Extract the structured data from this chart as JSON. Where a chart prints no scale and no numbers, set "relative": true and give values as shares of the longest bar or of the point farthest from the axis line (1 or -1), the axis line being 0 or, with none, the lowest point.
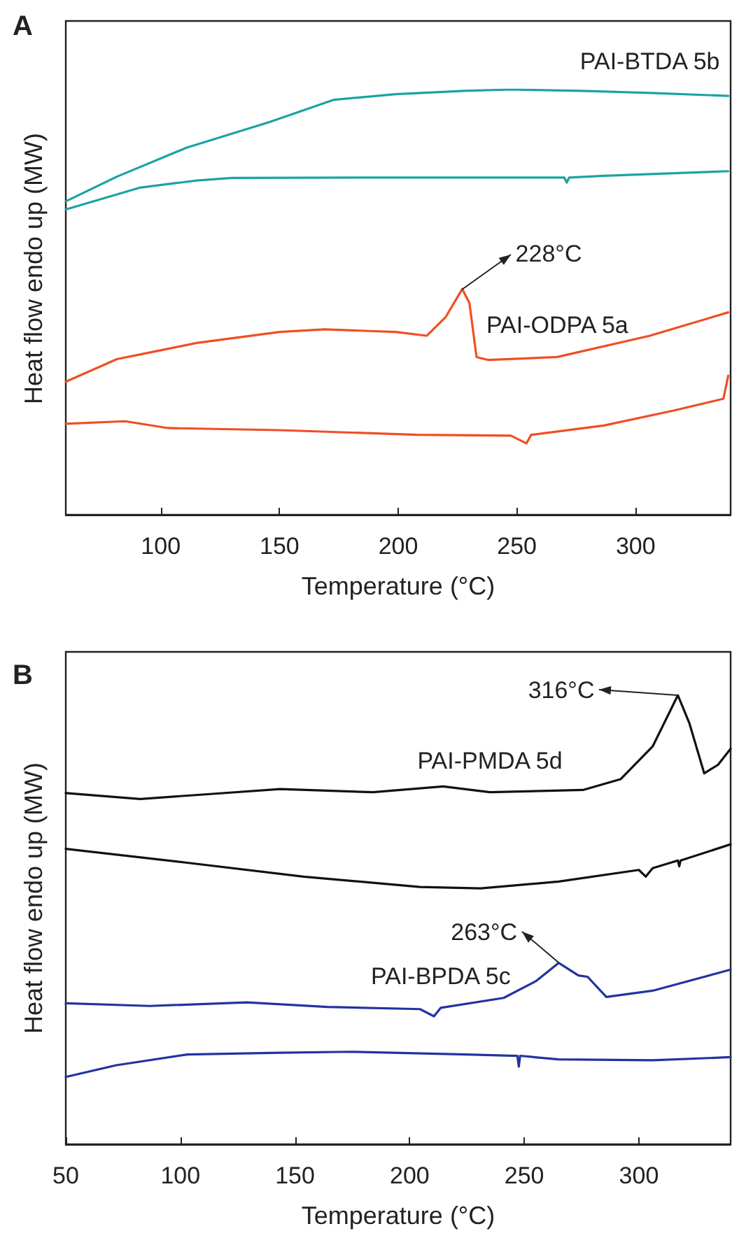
{
  "chart_data": [
    {
      "type": "line",
      "title": "A",
      "xlabel": "Temperature (°C)",
      "ylabel": "Heat flow endo up (MW)",
      "relative": true,
      "xlim": [
        60,
        340
      ],
      "xticks": [
        100,
        150,
        200,
        250,
        300
      ],
      "marker": "none",
      "line_style": "solid",
      "annotations": [
        {
          "text": "228°C",
          "x": 227,
          "y": 0.531
        }
      ],
      "series": [
        {
          "name": "PAI-BTDA 5b",
          "color": "#1aa3a3",
          "x": [
            60,
            81.5,
            110.8,
            146,
            173,
            199,
            228,
            247.5,
            277,
            306,
            339
          ],
          "values": [
            0.737,
            0.795,
            0.863,
            0.924,
            0.976,
            0.989,
            0.997,
            1.0,
            0.997,
            0.992,
            0.985
          ]
        },
        {
          "color": "#1aa3a3",
          "x": [
            60,
            91,
            115,
            130,
            189,
            247.5,
            270,
            271,
            272,
            286.6,
            339
          ],
          "values": [
            0.718,
            0.769,
            0.786,
            0.792,
            0.793,
            0.793,
            0.793,
            0.781,
            0.793,
            0.797,
            0.808
          ]
        },
        {
          "name": "PAI-ODPA 5a",
          "color": "#f04e23",
          "x": [
            60,
            81.5,
            101,
            115,
            150,
            169,
            199,
            212,
            220,
            227,
            230,
            233,
            238,
            267,
            306,
            339
          ],
          "values": [
            0.313,
            0.366,
            0.388,
            0.404,
            0.43,
            0.436,
            0.43,
            0.421,
            0.465,
            0.531,
            0.498,
            0.371,
            0.364,
            0.371,
            0.421,
            0.476
          ]
        },
        {
          "color": "#f04e23",
          "x": [
            60,
            85,
            103,
            150,
            208,
            247.5,
            254,
            256,
            286.6,
            316,
            337,
            339
          ],
          "values": [
            0.214,
            0.22,
            0.204,
            0.199,
            0.188,
            0.186,
            0.168,
            0.188,
            0.21,
            0.245,
            0.273,
            0.327
          ]
        }
      ]
    },
    {
      "type": "line",
      "title": "B",
      "xlabel": "Temperature (°C)",
      "ylabel": "Heat flow endo up (MW)",
      "relative": true,
      "xlim": [
        50,
        340
      ],
      "xticks": [
        50,
        100,
        150,
        200,
        250,
        300
      ],
      "marker": "none",
      "line_style": "solid",
      "annotations": [
        {
          "text": "316°C",
          "x": 317,
          "y": 1.0
        },
        {
          "text": "263°C",
          "x": 265,
          "y": 0.404
        }
      ],
      "series": [
        {
          "name": "PAI-PMDA 5d",
          "color": "#111111",
          "x": [
            50,
            82.5,
            113,
            143.5,
            184,
            214.6,
            235,
            275.6,
            292,
            306,
            317,
            322,
            328.5,
            334.5,
            340
          ],
          "values": [
            0.782,
            0.769,
            0.78,
            0.791,
            0.784,
            0.797,
            0.784,
            0.789,
            0.813,
            0.886,
            1.0,
            0.938,
            0.826,
            0.845,
            0.881
          ]
        },
        {
          "color": "#111111",
          "x": [
            50,
            103,
            153.7,
            204.5,
            231,
            265,
            300,
            303,
            306,
            317,
            317.6,
            318.2,
            340
          ],
          "values": [
            0.658,
            0.627,
            0.596,
            0.573,
            0.57,
            0.585,
            0.611,
            0.596,
            0.615,
            0.632,
            0.619,
            0.632,
            0.668
          ]
        },
        {
          "name": "PAI-BPDA 5c",
          "color": "#2233a0",
          "x": [
            50,
            86.6,
            129,
            164,
            204.5,
            210.6,
            213.6,
            241,
            255,
            265,
            273.6,
            277.6,
            285.8,
            306,
            340
          ],
          "values": [
            0.314,
            0.308,
            0.316,
            0.306,
            0.301,
            0.285,
            0.304,
            0.326,
            0.363,
            0.404,
            0.376,
            0.373,
            0.328,
            0.342,
            0.389
          ]
        },
        {
          "color": "#2233a0",
          "x": [
            50,
            72,
            103,
            143.5,
            174,
            224.8,
            247,
            247.6,
            248.2,
            265,
            306,
            340
          ],
          "values": [
            0.15,
            0.176,
            0.2,
            0.204,
            0.206,
            0.2,
            0.197,
            0.173,
            0.197,
            0.189,
            0.187,
            0.194
          ]
        }
      ]
    }
  ]
}
